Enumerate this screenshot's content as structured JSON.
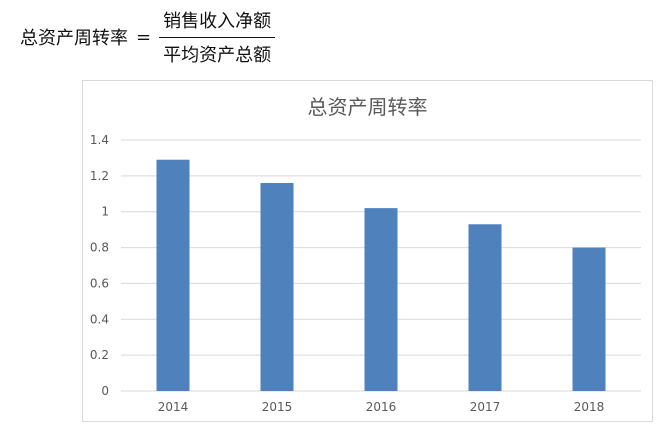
{
  "formula": {
    "lhs": "总资产周转率",
    "equals": "=",
    "numerator": "销售收入净额",
    "denominator": "平均资产总额"
  },
  "chart_data": {
    "type": "bar",
    "title": "总资产周转率",
    "categories": [
      "2014",
      "2015",
      "2016",
      "2017",
      "2018"
    ],
    "values": [
      1.29,
      1.16,
      1.02,
      0.93,
      0.8
    ],
    "ylim": [
      0,
      1.4
    ],
    "yticks": [
      "0",
      "0.2",
      "0.4",
      "0.6",
      "0.8",
      "1",
      "1.2",
      "1.4"
    ],
    "xlabel": "",
    "ylabel": "",
    "grid": true,
    "legend": "none",
    "bar_color": "#4f81bd",
    "grid_color": "#d9d9d9"
  }
}
